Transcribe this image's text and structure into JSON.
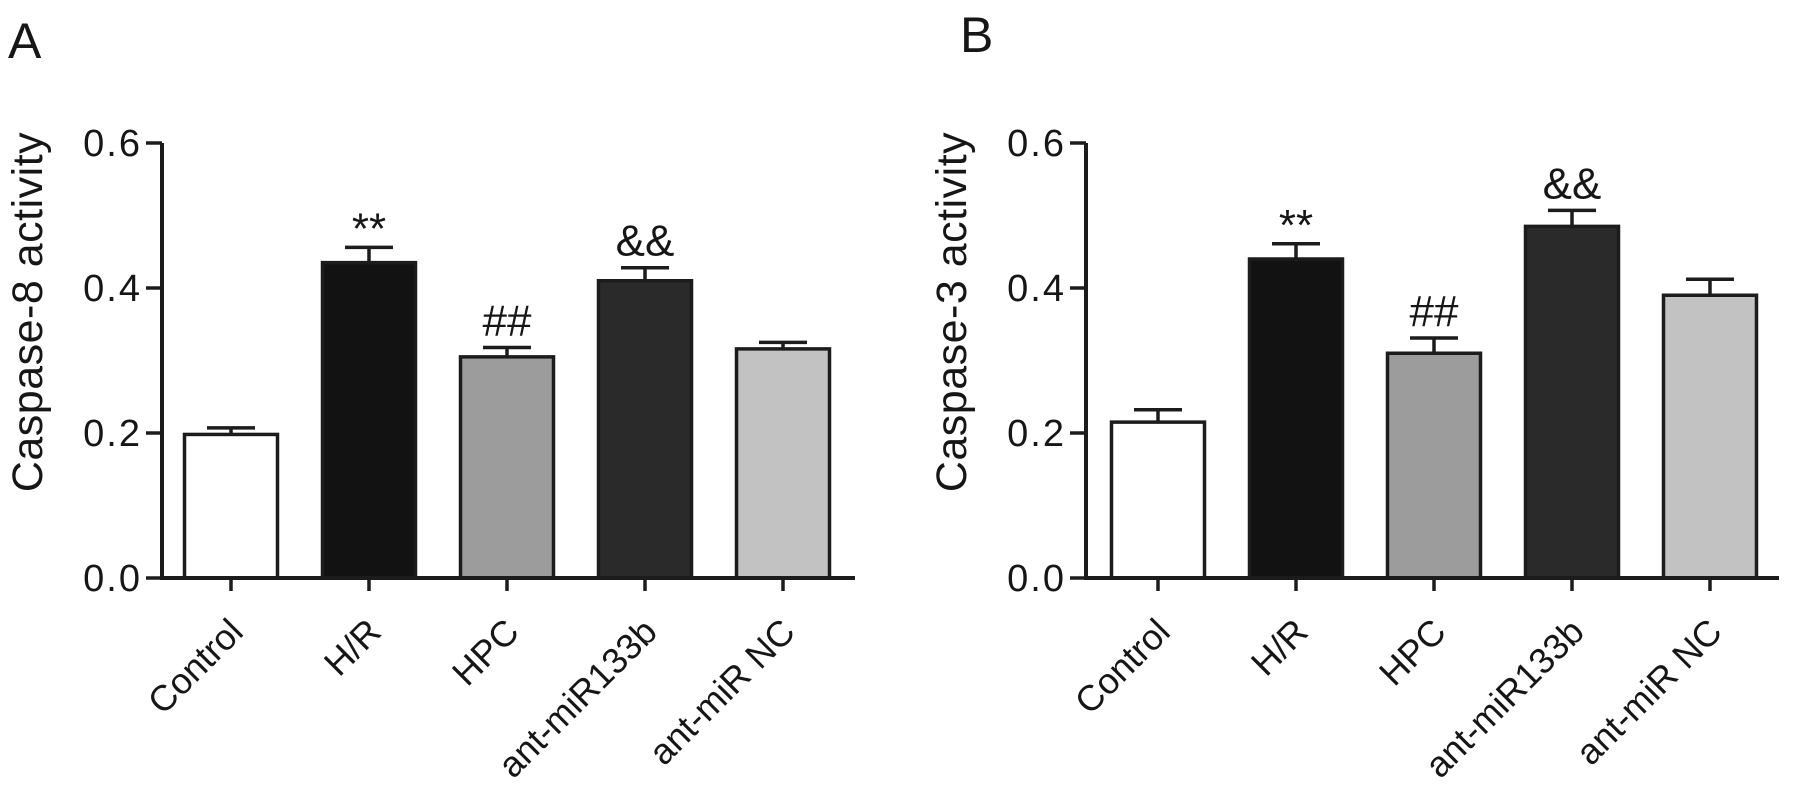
{
  "figure": {
    "background": "#ffffff",
    "panels": [
      {
        "letter": "A",
        "ylabel": "Caspase-8 activity"
      },
      {
        "letter": "B",
        "ylabel": "Caspase-3 activity"
      }
    ]
  },
  "chart_data": [
    {
      "type": "bar",
      "panel_letter": "A",
      "title": "",
      "xlabel": "",
      "ylabel": "Caspase-8 activity",
      "categories": [
        "Control",
        "H/R",
        "HPC",
        "ant-miR133b",
        "ant-miR NC"
      ],
      "values": [
        0.198,
        0.435,
        0.305,
        0.41,
        0.316
      ],
      "errors": [
        0.009,
        0.021,
        0.013,
        0.018,
        0.009
      ],
      "annotations": [
        "",
        "**",
        "##",
        "&&",
        ""
      ],
      "bar_colors": [
        "#ffffff",
        "#121212",
        "#9c9c9c",
        "#2a2a2a",
        "#c2c2c2"
      ],
      "bar_stroke": "#1c1c1c",
      "ylim": [
        0,
        0.6
      ],
      "yticks": [
        0,
        0.2,
        0.4,
        0.6
      ],
      "ytick_labels": [
        "0.0",
        "0.2",
        "0.4",
        "0.6"
      ],
      "grid": false,
      "legend_position": "none",
      "error_bar_direction": "upper"
    },
    {
      "type": "bar",
      "panel_letter": "B",
      "title": "",
      "xlabel": "",
      "ylabel": "Caspase-3 activity",
      "categories": [
        "Control",
        "H/R",
        "HPC",
        "ant-miR133b",
        "ant-miR NC"
      ],
      "values": [
        0.215,
        0.44,
        0.31,
        0.485,
        0.39
      ],
      "errors": [
        0.017,
        0.021,
        0.021,
        0.022,
        0.022
      ],
      "annotations": [
        "",
        "**",
        "##",
        "&&",
        ""
      ],
      "bar_colors": [
        "#ffffff",
        "#121212",
        "#9c9c9c",
        "#2a2a2a",
        "#c2c2c2"
      ],
      "bar_stroke": "#1c1c1c",
      "ylim": [
        0,
        0.6
      ],
      "yticks": [
        0,
        0.2,
        0.4,
        0.6
      ],
      "ytick_labels": [
        "0.0",
        "0.2",
        "0.4",
        "0.6"
      ],
      "grid": false,
      "legend_position": "none",
      "error_bar_direction": "upper"
    }
  ]
}
